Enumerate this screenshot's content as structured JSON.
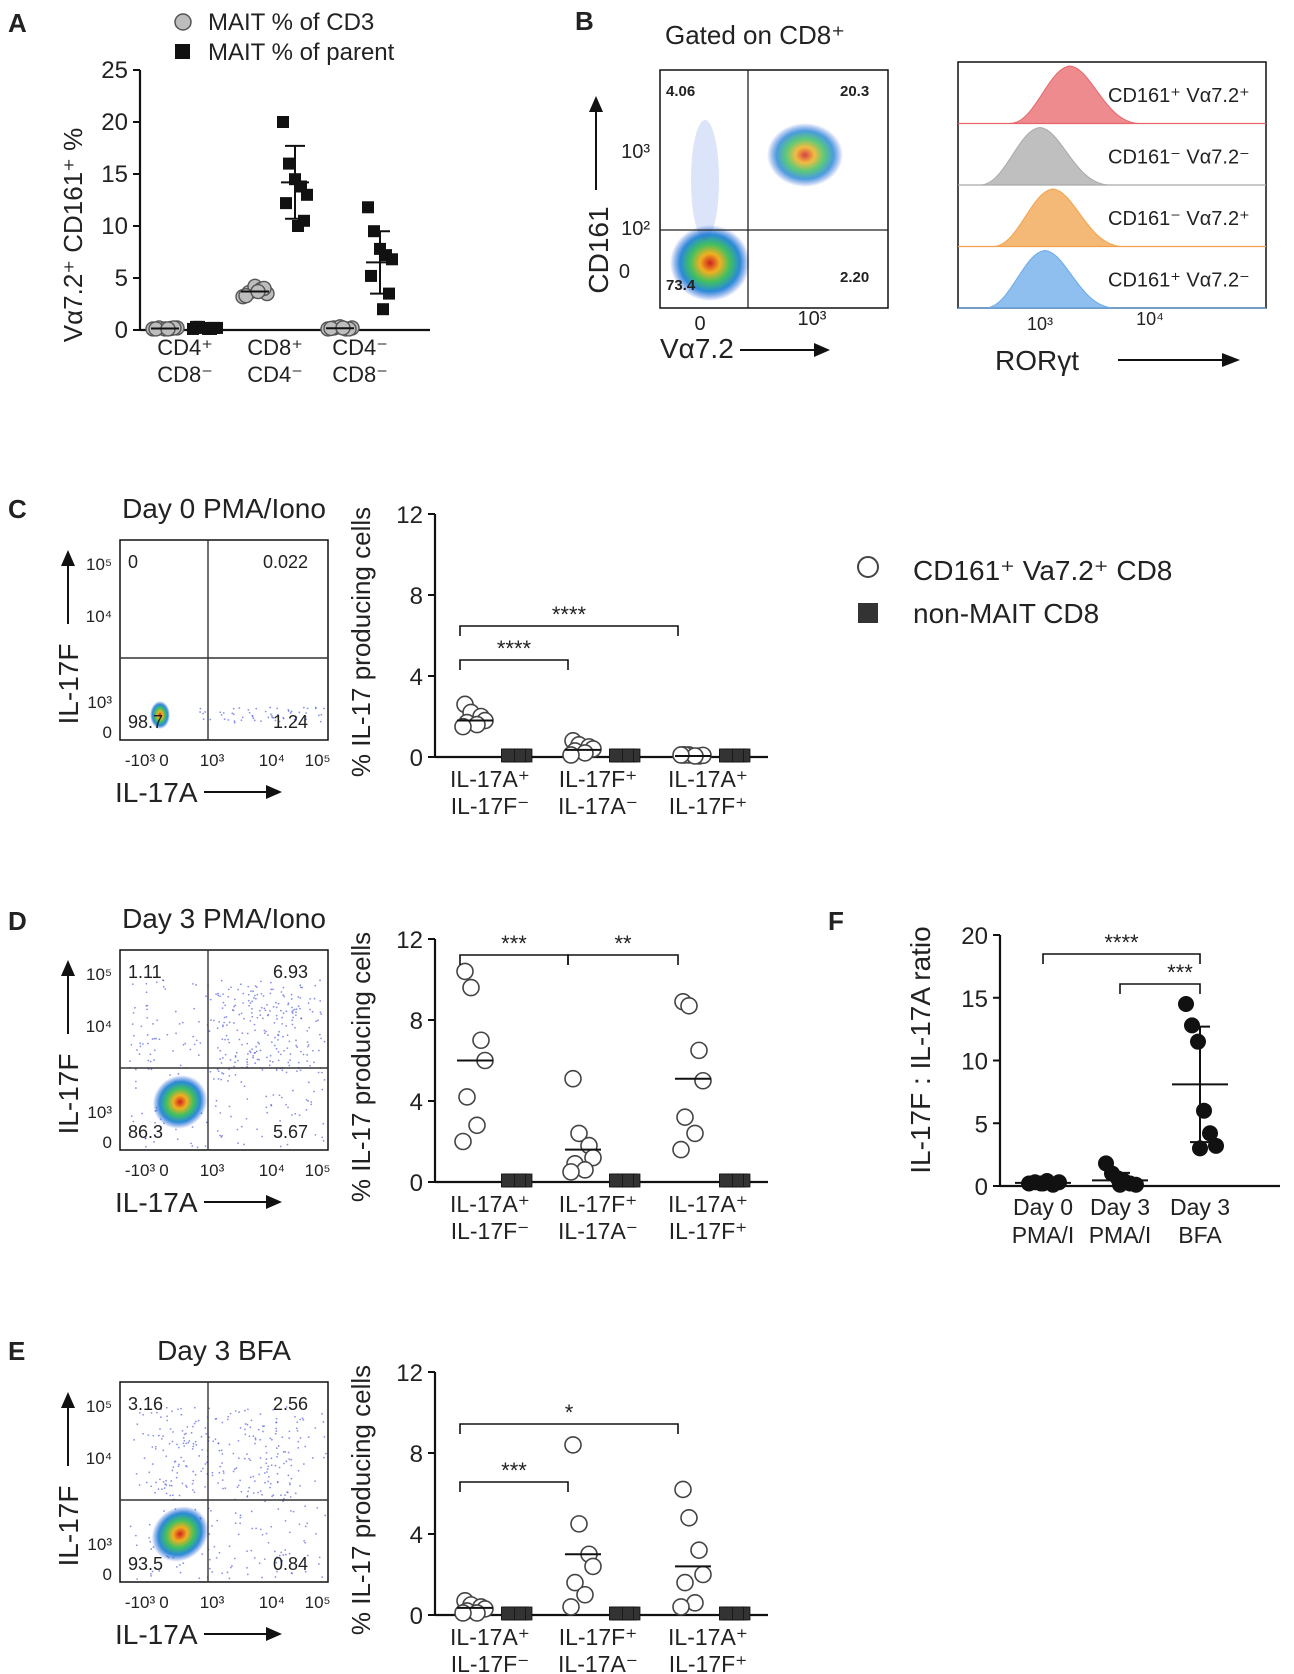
{
  "panels": {
    "A": "A",
    "B": "B",
    "C": "C",
    "D": "D",
    "E": "E",
    "F": "F"
  },
  "panelA": {
    "legend": [
      "MAIT % of CD3",
      "MAIT % of parent"
    ],
    "ylabel": "Vα7.2⁺ CD161⁺ %",
    "yticks": [
      "0",
      "5",
      "10",
      "15",
      "20",
      "25"
    ],
    "groups": [
      [
        "CD4⁺",
        "CD8⁻"
      ],
      [
        "CD8⁺",
        "CD4⁻"
      ],
      [
        "CD4⁻",
        "CD8⁻"
      ]
    ]
  },
  "panelB": {
    "title": "Gated on CD8⁺",
    "ylabel": "CD161",
    "xlabel": "Vα7.2",
    "quadrants": {
      "tl": "4.06",
      "tr": "20.3",
      "bl": "73.4",
      "br": "2.20"
    },
    "yticks": [
      "0",
      "10²",
      "10³"
    ],
    "xticks": [
      "0",
      "10³"
    ],
    "histo_labels": [
      "CD161⁺ Vα7.2⁺",
      "CD161⁻ Vα7.2⁻",
      "CD161⁻ Vα7.2⁺",
      "CD161⁺ Vα7.2⁻"
    ],
    "histo_colors": [
      "#e8646a",
      "#a9a9a9",
      "#f2a14a",
      "#6aa9e8"
    ],
    "histo_xlabel": "RORγt",
    "histo_xticks": [
      "10³",
      "10⁴"
    ]
  },
  "flowLabels": {
    "y": "IL-17F",
    "x": "IL-17A",
    "yticks": [
      "0",
      "10³",
      "10⁴",
      "10⁵"
    ],
    "xticks": [
      "-10³",
      "0",
      "10³",
      "10⁴",
      "10⁵"
    ]
  },
  "panelC": {
    "title": "Day 0 PMA/Iono",
    "q": {
      "tl": "0",
      "tr": "0.022",
      "bl": "98.7",
      "br": "1.24"
    }
  },
  "panelD": {
    "title": "Day 3 PMA/Iono",
    "q": {
      "tl": "1.11",
      "tr": "6.93",
      "bl": "86.3",
      "br": "5.67"
    }
  },
  "panelE": {
    "title": "Day 3 BFA",
    "q": {
      "tl": "3.16",
      "tr": "2.56",
      "bl": "93.5",
      "br": "0.84"
    }
  },
  "prodLabels": {
    "ylabel": "% IL-17 producing cells",
    "yticks": [
      "0",
      "4",
      "8",
      "12"
    ],
    "groups": [
      [
        "IL-17A⁺",
        "IL-17F⁻"
      ],
      [
        "IL-17F⁺",
        "IL-17A⁻"
      ],
      [
        "IL-17A⁺",
        "IL-17F⁺"
      ]
    ]
  },
  "legendCDE": {
    "open": "CD161⁺ Va7.2⁺ CD8",
    "filled": "non-MAIT CD8"
  },
  "sig": {
    "C": [
      "****",
      "****"
    ],
    "D": [
      "***",
      "**"
    ],
    "E": [
      "***",
      "*"
    ],
    "F": [
      "****",
      "***"
    ]
  },
  "panelF": {
    "ylabel": "IL-17F : IL-17A ratio",
    "yticks": [
      "0",
      "5",
      "10",
      "15",
      "20"
    ],
    "groups": [
      [
        "Day 0",
        "PMA/I"
      ],
      [
        "Day 3",
        "PMA/I"
      ],
      [
        "Day 3",
        "BFA"
      ]
    ]
  },
  "chart_data": [
    {
      "id": "A",
      "type": "scatter",
      "ylabel": "Vα7.2⁺ CD161⁺ %",
      "ylim": [
        0,
        25
      ],
      "categories": [
        "CD4⁺ CD8⁻",
        "CD8⁺ CD4⁻",
        "CD4⁻ CD8⁻"
      ],
      "series": [
        {
          "name": "MAIT % of CD3",
          "values": [
            [
              0.1,
              0.2,
              0.1,
              0.15,
              0.2,
              0.1,
              0.2,
              0.1
            ],
            [
              3.2,
              3.6,
              4.2,
              3.9,
              3.5,
              3.3,
              4.0,
              3.7
            ],
            [
              0.1,
              0.2,
              0.3,
              0.1,
              0.2,
              0.15,
              0.1,
              0.2
            ]
          ],
          "mean": [
            0.15,
            3.7,
            0.17
          ]
        },
        {
          "name": "MAIT % of parent",
          "values": [
            [
              0.1,
              0.3,
              0.2,
              0.1,
              0.2,
              0.3,
              0.2,
              0.1
            ],
            [
              20.0,
              16.0,
              14.5,
              13.8,
              13.0,
              12.2,
              10.5,
              10.0
            ],
            [
              11.8,
              9.5,
              7.8,
              7.2,
              6.8,
              5.2,
              3.5,
              2.0
            ]
          ],
          "mean": [
            0.2,
            14.2,
            6.5
          ],
          "sd": [
            0.1,
            3.5,
            3.0
          ]
        }
      ]
    },
    {
      "id": "C",
      "type": "scatter",
      "ylim": [
        0,
        12
      ],
      "categories": [
        "IL-17A⁺ IL-17F⁻",
        "IL-17F⁺ IL-17A⁻",
        "IL-17A⁺ IL-17F⁺"
      ],
      "series": [
        {
          "name": "CD161⁺ Va7.2⁺ CD8",
          "values": [
            [
              2.6,
              2.2,
              2.0,
              1.8,
              1.7,
              1.6,
              1.5
            ],
            [
              0.8,
              0.6,
              0.5,
              0.4,
              0.3,
              0.2,
              0.1
            ],
            [
              0.1,
              0.1,
              0.05,
              0.08,
              0.1,
              0.05,
              0.1
            ]
          ],
          "mean": [
            1.8,
            0.35,
            0.05
          ]
        },
        {
          "name": "non-MAIT CD8",
          "values": [
            [
              0.05,
              0.05,
              0.05,
              0.05,
              0.05,
              0.05,
              0.05
            ],
            [
              0.05,
              0.05,
              0.05,
              0.05,
              0.05,
              0.05,
              0.05
            ],
            [
              0.05,
              0.05,
              0.05,
              0.05,
              0.05,
              0.05,
              0.05
            ]
          ]
        }
      ]
    },
    {
      "id": "D",
      "type": "scatter",
      "ylim": [
        0,
        12
      ],
      "categories": [
        "IL-17A⁺ IL-17F⁻",
        "IL-17F⁺ IL-17A⁻",
        "IL-17A⁺ IL-17F⁺"
      ],
      "series": [
        {
          "name": "CD161⁺ Va7.2⁺ CD8",
          "values": [
            [
              10.4,
              9.6,
              7.0,
              6.0,
              4.2,
              2.8,
              2.0
            ],
            [
              5.1,
              2.4,
              1.8,
              1.2,
              0.9,
              0.6,
              0.5
            ],
            [
              8.9,
              8.7,
              6.5,
              5.0,
              3.2,
              2.4,
              1.6
            ]
          ],
          "mean": [
            6.0,
            1.6,
            5.1
          ]
        },
        {
          "name": "non-MAIT CD8",
          "values": [
            [
              0.05,
              0.05,
              0.05,
              0.05,
              0.05,
              0.05,
              0.05
            ],
            [
              0.05,
              0.05,
              0.05,
              0.05,
              0.05,
              0.05,
              0.05
            ],
            [
              0.05,
              0.05,
              0.05,
              0.05,
              0.05,
              0.05,
              0.05
            ]
          ]
        }
      ]
    },
    {
      "id": "E",
      "type": "scatter",
      "ylim": [
        0,
        12
      ],
      "categories": [
        "IL-17A⁺ IL-17F⁻",
        "IL-17F⁺ IL-17A⁻",
        "IL-17A⁺ IL-17F⁺"
      ],
      "series": [
        {
          "name": "CD161⁺ Va7.2⁺ CD8",
          "values": [
            [
              0.7,
              0.5,
              0.4,
              0.3,
              0.2,
              0.1,
              0.1
            ],
            [
              8.4,
              4.5,
              3.0,
              2.4,
              1.6,
              1.0,
              0.4
            ],
            [
              6.2,
              4.8,
              3.2,
              2.0,
              1.6,
              0.6,
              0.4
            ]
          ],
          "mean": [
            0.35,
            3.0,
            2.4
          ]
        },
        {
          "name": "non-MAIT CD8",
          "values": [
            [
              0.05,
              0.05,
              0.05,
              0.05,
              0.05,
              0.05,
              0.05
            ],
            [
              0.05,
              0.05,
              0.05,
              0.05,
              0.05,
              0.05,
              0.05
            ],
            [
              0.05,
              0.05,
              0.05,
              0.05,
              0.05,
              0.05,
              0.05
            ]
          ]
        }
      ]
    },
    {
      "id": "F",
      "type": "scatter",
      "ylabel": "IL-17F : IL-17A ratio",
      "ylim": [
        0,
        20
      ],
      "categories": [
        "Day 0 PMA/I",
        "Day 3 PMA/I",
        "Day 3 BFA"
      ],
      "values": [
        [
          0.2,
          0.3,
          0.2,
          0.4,
          0.1,
          0.3,
          0.2
        ],
        [
          1.8,
          1.0,
          0.6,
          0.4,
          0.2,
          0.1,
          0.1
        ],
        [
          14.5,
          12.8,
          11.5,
          6.0,
          4.2,
          3.2,
          3.0
        ]
      ],
      "mean": [
        0.25,
        0.45,
        8.1
      ],
      "sd": [
        0.1,
        0.6,
        4.6
      ]
    }
  ]
}
